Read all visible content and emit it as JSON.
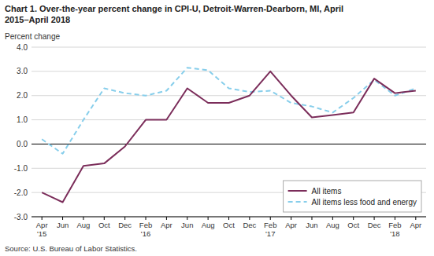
{
  "chart_data": {
    "type": "line",
    "title": "Chart 1. Over-the-year percent change in CPI-U, Detroit-Warren-Dearborn, MI, April",
    "subtitle": "2015–April 2018",
    "ylabel": "Percent change",
    "source": "Source: U.S. Bureau of Labor Statistics.",
    "categories": [
      "Apr\n'15",
      "Jun",
      "Aug",
      "Oct",
      "Dec",
      "Feb\n'16",
      "Apr",
      "Jun",
      "Aug",
      "Oct",
      "Dec",
      "Feb\n'17",
      "Apr",
      "Jun",
      "Aug",
      "Oct",
      "Dec",
      "Feb\n'18",
      "Apr"
    ],
    "series": [
      {
        "name": "All items",
        "color": "#7B2D5A",
        "line_style": "solid",
        "values": [
          -2.0,
          -2.4,
          -0.9,
          -0.8,
          -0.1,
          1.0,
          1.0,
          2.3,
          1.7,
          1.7,
          2.0,
          3.0,
          2.0,
          1.1,
          1.2,
          1.3,
          2.7,
          2.1,
          2.2
        ]
      },
      {
        "name": "All items less food and energy",
        "color": "#87CEEB",
        "line_style": "dashed",
        "values": [
          0.2,
          -0.4,
          1.0,
          2.3,
          2.1,
          2.0,
          2.2,
          3.15,
          3.05,
          2.3,
          2.15,
          2.2,
          1.7,
          1.55,
          1.3,
          1.9,
          2.65,
          2.0,
          2.3
        ]
      }
    ],
    "ylim": [
      -3.0,
      4.0
    ],
    "yticks": [
      {
        "value": -3.0,
        "label": "-3.0"
      },
      {
        "value": -2.0,
        "label": "-2.0"
      },
      {
        "value": -1.0,
        "label": "-1.0"
      },
      {
        "value": 0.0,
        "label": "0.0"
      },
      {
        "value": 1.0,
        "label": "1.0"
      },
      {
        "value": 2.0,
        "label": "2.0"
      },
      {
        "value": 3.0,
        "label": "3.0"
      },
      {
        "value": 4.0,
        "label": "4.0"
      }
    ],
    "grid": true,
    "legend": "lower right"
  }
}
